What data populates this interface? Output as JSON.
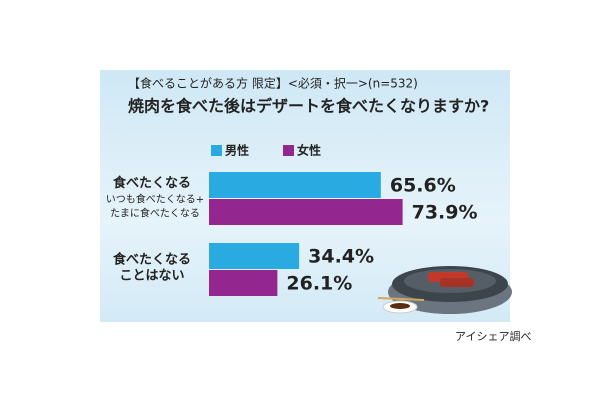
{
  "chart_data": {
    "type": "barh",
    "subtitle": "【食べることがある方 限定】<必須・択一>(n=532)",
    "title": "焼肉を食べた後はデザートを食べたくなりますか?",
    "categories": [
      [
        "食べたくなる"
      ],
      [
        "食べたくなる",
        "ことはない"
      ]
    ],
    "category_notes": [
      [
        "いつも食べたくなる+",
        "たまに食べたくなる"
      ],
      []
    ],
    "series": [
      {
        "name": "男性",
        "color": "#29abe2",
        "values": [
          65.6,
          34.4
        ],
        "value_labels": [
          "65.6%",
          "34.4%"
        ]
      },
      {
        "name": "女性",
        "color": "#93278f",
        "values": [
          73.9,
          26.1
        ],
        "value_labels": [
          "73.9%",
          "26.1%"
        ]
      }
    ],
    "xlim": [
      0,
      100
    ],
    "source": "アイシェア調べ"
  }
}
